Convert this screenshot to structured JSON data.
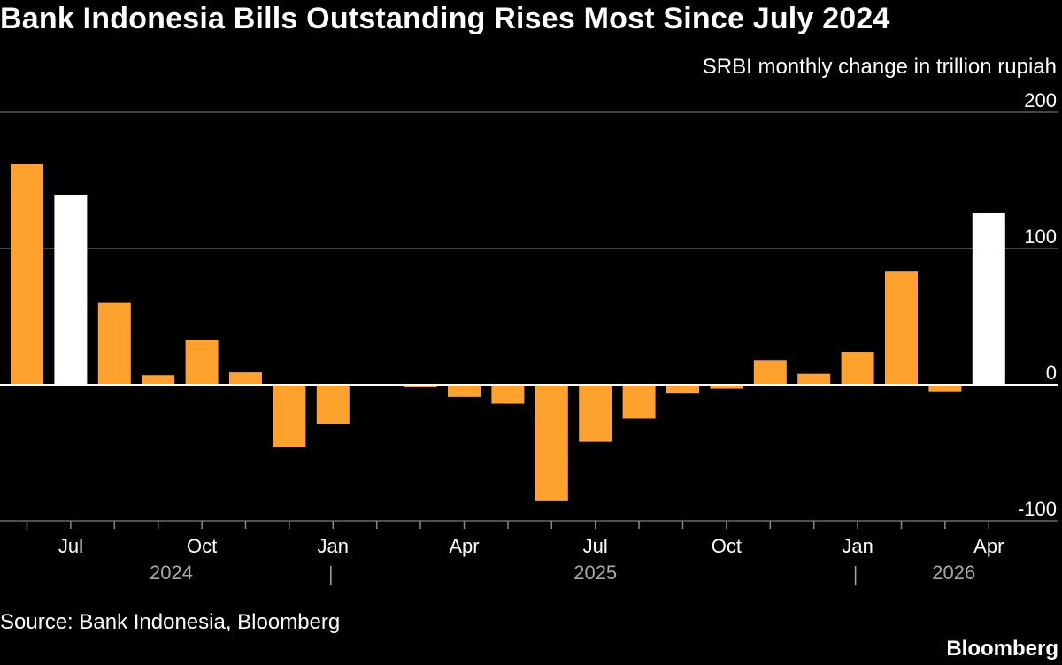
{
  "title": "Bank Indonesia Bills Outstanding Rises Most Since July 2024",
  "unit_label": "SRBI monthly change in trillion rupiah",
  "source": "Source: Bank Indonesia, Bloomberg",
  "brand": "Bloomberg",
  "colors": {
    "background": "#000000",
    "bar": "#ffa12c",
    "highlight": "#ffffff",
    "grid": "#5a5a5a",
    "zero": "#ffffff"
  },
  "chart_data": {
    "type": "bar",
    "title": "Bank Indonesia Bills Outstanding Rises Most Since July 2024",
    "ylabel": "SRBI monthly change in trillion rupiah",
    "ylim": [
      -100,
      200
    ],
    "yticks": [
      200,
      100,
      0,
      -100
    ],
    "grid": true,
    "categories": [
      "2024-06",
      "2024-07",
      "2024-08",
      "2024-09",
      "2024-10",
      "2024-11",
      "2024-12",
      "2025-01",
      "2025-02",
      "2025-03",
      "2025-04",
      "2025-05",
      "2025-06",
      "2025-07",
      "2025-08",
      "2025-09",
      "2025-10",
      "2025-11",
      "2025-12",
      "2026-01",
      "2026-02",
      "2026-03",
      "2026-04"
    ],
    "values": [
      162,
      139,
      60,
      7,
      33,
      9,
      -46,
      -29,
      0,
      -2,
      -9,
      -14,
      -85,
      -42,
      -25,
      -6,
      -3,
      18,
      8,
      24,
      83,
      -5,
      126
    ],
    "highlighted": [
      "2024-07",
      "2026-04"
    ],
    "x_tick_labels": [
      {
        "label": "Jul",
        "index": 1
      },
      {
        "label": "Oct",
        "index": 4
      },
      {
        "label": "Jan",
        "index": 7
      },
      {
        "label": "Apr",
        "index": 10
      },
      {
        "label": "Jul",
        "index": 13
      },
      {
        "label": "Oct",
        "index": 16
      },
      {
        "label": "Jan",
        "index": 19
      },
      {
        "label": "Apr",
        "index": 22
      }
    ],
    "year_labels": [
      {
        "label": "2024",
        "center_index": 3.3
      },
      {
        "label": "2025",
        "center_index": 13
      },
      {
        "label": "2026",
        "center_index": 21.2
      }
    ],
    "year_separators": [
      6.95,
      18.95
    ],
    "y_tick_labels": [
      "200",
      "100",
      "0",
      "-100"
    ]
  }
}
